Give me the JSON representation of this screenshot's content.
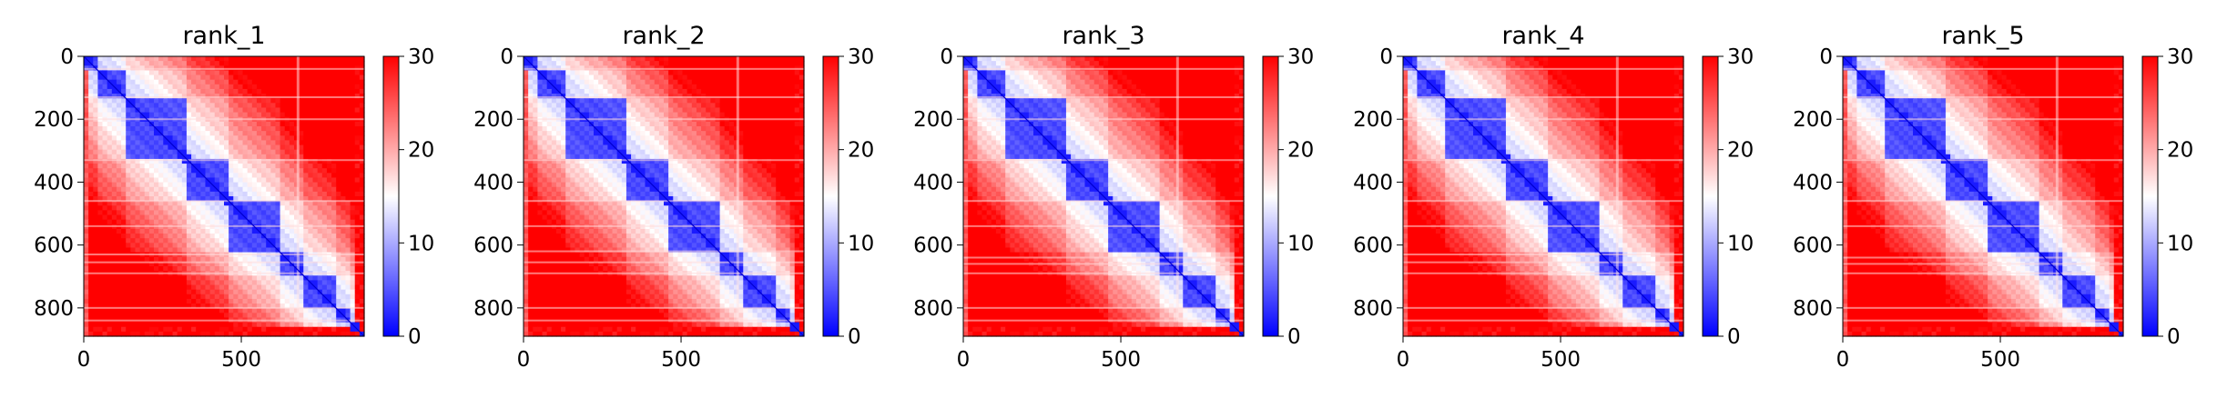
{
  "chart_data": [
    {
      "type": "heatmap",
      "title": "rank_1",
      "xlim": [
        0,
        890
      ],
      "ylim": [
        890,
        0
      ],
      "xticks": [
        "0",
        "500"
      ],
      "yticks": [
        "0",
        "200",
        "400",
        "600",
        "800"
      ],
      "colorbar": {
        "min": 0,
        "max": 30,
        "ticks": [
          "0",
          "10",
          "20",
          "30"
        ],
        "colormap": "bwr"
      },
      "block_boundaries": [
        40,
        130,
        330,
        460,
        630,
        690,
        800,
        840,
        870
      ],
      "bright_lines": [
        40,
        130,
        200,
        330,
        460,
        540,
        630,
        655,
        690,
        800,
        840
      ]
    },
    {
      "type": "heatmap",
      "title": "rank_2",
      "xlim": [
        0,
        890
      ],
      "ylim": [
        890,
        0
      ],
      "xticks": [
        "0",
        "500"
      ],
      "yticks": [
        "0",
        "200",
        "400",
        "600",
        "800"
      ],
      "colorbar": {
        "min": 0,
        "max": 30,
        "ticks": [
          "0",
          "10",
          "20",
          "30"
        ],
        "colormap": "bwr"
      },
      "block_boundaries": [
        40,
        130,
        330,
        460,
        630,
        690,
        800,
        840,
        870
      ],
      "bright_lines": [
        40,
        130,
        200,
        330,
        460,
        540,
        620,
        655,
        690,
        800,
        840
      ]
    },
    {
      "type": "heatmap",
      "title": "rank_3",
      "xlim": [
        0,
        890
      ],
      "ylim": [
        890,
        0
      ],
      "xticks": [
        "0",
        "500"
      ],
      "yticks": [
        "0",
        "200",
        "400",
        "600",
        "800"
      ],
      "colorbar": {
        "min": 0,
        "max": 30,
        "ticks": [
          "0",
          "10",
          "20",
          "30"
        ],
        "colormap": "bwr"
      },
      "block_boundaries": [
        40,
        130,
        330,
        460,
        630,
        690,
        800,
        840,
        870
      ],
      "bright_lines": [
        40,
        130,
        200,
        330,
        460,
        540,
        640,
        660,
        690,
        800,
        840
      ]
    },
    {
      "type": "heatmap",
      "title": "rank_4",
      "xlim": [
        0,
        890
      ],
      "ylim": [
        890,
        0
      ],
      "xticks": [
        "0",
        "500"
      ],
      "yticks": [
        "0",
        "200",
        "400",
        "600",
        "800"
      ],
      "colorbar": {
        "min": 0,
        "max": 30,
        "ticks": [
          "0",
          "10",
          "20",
          "30"
        ],
        "colormap": "bwr"
      },
      "block_boundaries": [
        40,
        130,
        330,
        460,
        630,
        690,
        800,
        840,
        870
      ],
      "bright_lines": [
        40,
        130,
        200,
        330,
        460,
        540,
        630,
        655,
        690,
        800,
        840
      ]
    },
    {
      "type": "heatmap",
      "title": "rank_5",
      "xlim": [
        0,
        890
      ],
      "ylim": [
        890,
        0
      ],
      "xticks": [
        "0",
        "500"
      ],
      "yticks": [
        "0",
        "200",
        "400",
        "600",
        "800"
      ],
      "colorbar": {
        "min": 0,
        "max": 30,
        "ticks": [
          "0",
          "10",
          "20",
          "30"
        ],
        "colormap": "bwr"
      },
      "block_boundaries": [
        40,
        130,
        330,
        460,
        630,
        690,
        800,
        840,
        870
      ],
      "bright_lines": [
        40,
        130,
        200,
        330,
        460,
        540,
        640,
        660,
        690,
        800,
        840
      ]
    }
  ]
}
